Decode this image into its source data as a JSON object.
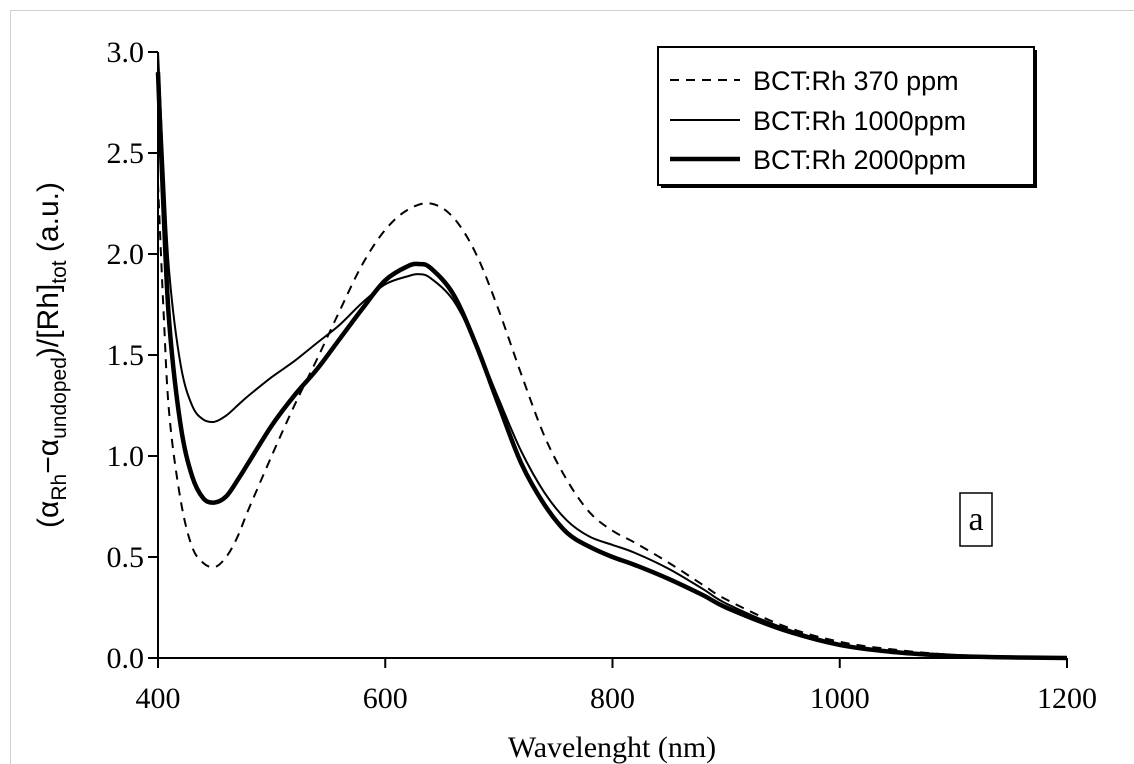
{
  "chart_data": {
    "type": "line",
    "xlabel": "Wavelenght (nm)",
    "ylabel": {
      "open": "(α",
      "sub1": "Rh",
      "minus": "−α",
      "sub2": "undoped",
      "mid": ")/[Rh]",
      "sub3": "tot",
      "unit": " (a.u.)"
    },
    "xlim": [
      400,
      1200
    ],
    "ylim": [
      0.0,
      3.0
    ],
    "xticks": [
      "400",
      "600",
      "800",
      "1000",
      "1200"
    ],
    "yticks": [
      "0.0",
      "0.5",
      "1.0",
      "1.5",
      "2.0",
      "2.5",
      "3.0"
    ],
    "panel_label": "a",
    "legend_position": "top-right",
    "series": [
      {
        "name": "BCT:Rh 370 ppm",
        "style": "dashed",
        "x": [
          400,
          405,
          410,
          420,
          430,
          440,
          450,
          460,
          470,
          480,
          500,
          520,
          540,
          560,
          580,
          600,
          620,
          640,
          660,
          680,
          700,
          720,
          740,
          760,
          780,
          800,
          820,
          850,
          880,
          900,
          950,
          1000,
          1050,
          1100,
          1150,
          1200
        ],
        "y": [
          2.35,
          1.7,
          1.2,
          0.78,
          0.55,
          0.47,
          0.45,
          0.5,
          0.6,
          0.74,
          1.0,
          1.25,
          1.48,
          1.72,
          1.95,
          2.12,
          2.22,
          2.25,
          2.18,
          2.0,
          1.72,
          1.4,
          1.1,
          0.88,
          0.72,
          0.63,
          0.57,
          0.47,
          0.36,
          0.29,
          0.16,
          0.08,
          0.04,
          0.015,
          0.005,
          0.0
        ]
      },
      {
        "name": "BCT:Rh 1000ppm",
        "style": "thin",
        "x": [
          400,
          405,
          410,
          420,
          430,
          440,
          450,
          460,
          470,
          480,
          500,
          520,
          540,
          560,
          580,
          600,
          620,
          630,
          640,
          660,
          680,
          700,
          720,
          740,
          760,
          780,
          800,
          820,
          850,
          880,
          900,
          950,
          1000,
          1050,
          1100,
          1150,
          1200
        ],
        "y": [
          3.0,
          2.4,
          1.9,
          1.45,
          1.25,
          1.18,
          1.17,
          1.2,
          1.25,
          1.3,
          1.39,
          1.47,
          1.56,
          1.65,
          1.76,
          1.85,
          1.89,
          1.9,
          1.88,
          1.77,
          1.55,
          1.28,
          1.02,
          0.82,
          0.68,
          0.6,
          0.56,
          0.52,
          0.44,
          0.34,
          0.27,
          0.15,
          0.07,
          0.03,
          0.012,
          0.004,
          0.0
        ]
      },
      {
        "name": "BCT:Rh 2000ppm",
        "style": "thick",
        "x": [
          400,
          405,
          410,
          420,
          430,
          440,
          450,
          460,
          470,
          480,
          500,
          520,
          540,
          560,
          580,
          600,
          620,
          630,
          640,
          660,
          680,
          700,
          720,
          740,
          760,
          780,
          800,
          820,
          850,
          880,
          900,
          950,
          1000,
          1050,
          1100,
          1150,
          1200
        ],
        "y": [
          2.9,
          2.2,
          1.65,
          1.15,
          0.9,
          0.79,
          0.77,
          0.8,
          0.88,
          0.97,
          1.15,
          1.3,
          1.43,
          1.58,
          1.73,
          1.87,
          1.94,
          1.95,
          1.93,
          1.8,
          1.55,
          1.25,
          0.96,
          0.76,
          0.62,
          0.55,
          0.5,
          0.46,
          0.39,
          0.31,
          0.25,
          0.14,
          0.065,
          0.028,
          0.01,
          0.003,
          0.0
        ]
      }
    ]
  }
}
